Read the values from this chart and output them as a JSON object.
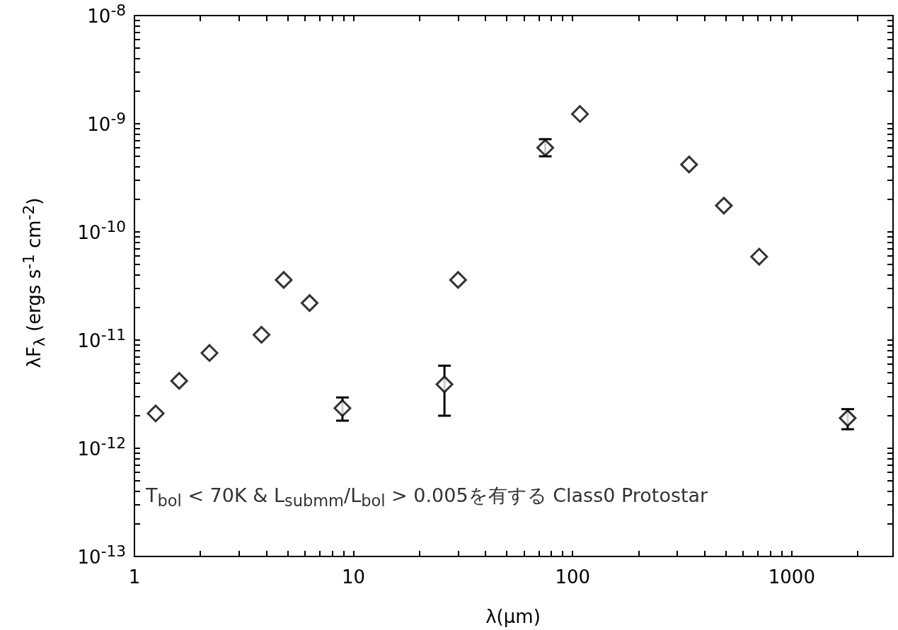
{
  "chart_data": {
    "type": "scatter",
    "xlabel": "λ(μm)",
    "ylabel": "λF$_{λ}$ (ergs s$^{-1}$ cm$^{-2}$)",
    "x": [
      1.25,
      1.6,
      2.2,
      3.8,
      4.8,
      6.3,
      8.9,
      26,
      30,
      75,
      108,
      340,
      490,
      710,
      1800
    ],
    "values": [
      2.1e-12,
      4.2e-12,
      7.6e-12,
      1.12e-11,
      3.6e-11,
      2.2e-11,
      2.35e-12,
      3.9e-12,
      3.6e-11,
      6e-10,
      1.23e-09,
      4.2e-10,
      1.75e-10,
      5.9e-11,
      1.9e-12
    ],
    "errors": [
      null,
      null,
      null,
      null,
      null,
      null,
      [
        1.8e-12,
        2.95e-12
      ],
      [
        2e-12,
        5.8e-12
      ],
      null,
      [
        5e-10,
        7.2e-10
      ],
      null,
      null,
      null,
      null,
      [
        1.5e-12,
        2.3e-12
      ]
    ],
    "color": "#000000",
    "marker": "diamond",
    "log": "xy",
    "grid": false,
    "xlim": [
      1,
      2900
    ],
    "xticks": [
      1,
      {
        "value": 2,
        "label": null
      },
      {
        "value": 3,
        "label": null
      },
      {
        "value": 4,
        "label": null
      },
      {
        "value": 5,
        "label": null
      },
      {
        "value": 6,
        "label": null
      },
      {
        "value": 7,
        "label": null
      },
      {
        "value": 8,
        "label": null
      },
      {
        "value": 9,
        "label": null
      },
      10,
      {
        "value": 20,
        "label": null
      },
      {
        "value": 30,
        "label": null
      },
      {
        "value": 40,
        "label": null
      },
      {
        "value": 50,
        "label": null
      },
      {
        "value": 60,
        "label": null
      },
      {
        "value": 70,
        "label": null
      },
      {
        "value": 80,
        "label": null
      },
      {
        "value": 90,
        "label": null
      },
      100,
      {
        "value": 200,
        "label": null
      },
      {
        "value": 300,
        "label": null
      },
      {
        "value": 400,
        "label": null
      },
      {
        "value": 500,
        "label": null
      },
      {
        "value": 600,
        "label": null
      },
      {
        "value": 700,
        "label": null
      },
      {
        "value": 800,
        "label": null
      },
      {
        "value": 900,
        "label": null
      },
      1000,
      {
        "value": 2000,
        "label": null
      }
    ],
    "ylim": [
      1e-13,
      1e-08
    ],
    "yticks": [
      {
        "value": 1e-13,
        "label": "10$^{-13}$"
      },
      {
        "value": 2e-13,
        "label": null
      },
      {
        "value": 3e-13,
        "label": null
      },
      {
        "value": 4e-13,
        "label": null
      },
      {
        "value": 5e-13,
        "label": null
      },
      {
        "value": 6e-13,
        "label": null
      },
      {
        "value": 7e-13,
        "label": null
      },
      {
        "value": 8e-13,
        "label": null
      },
      {
        "value": 9e-13,
        "label": null
      },
      {
        "value": 1e-12,
        "label": "10$^{-12}$"
      },
      {
        "value": 2e-12,
        "label": null
      },
      {
        "value": 3e-12,
        "label": null
      },
      {
        "value": 4e-12,
        "label": null
      },
      {
        "value": 5e-12,
        "label": null
      },
      {
        "value": 6e-12,
        "label": null
      },
      {
        "value": 7e-12,
        "label": null
      },
      {
        "value": 8e-12,
        "label": null
      },
      {
        "value": 9e-12,
        "label": null
      },
      {
        "value": 1e-11,
        "label": "10$^{-11}$"
      },
      {
        "value": 2e-11,
        "label": null
      },
      {
        "value": 3e-11,
        "label": null
      },
      {
        "value": 4e-11,
        "label": null
      },
      {
        "value": 5e-11,
        "label": null
      },
      {
        "value": 6e-11,
        "label": null
      },
      {
        "value": 7e-11,
        "label": null
      },
      {
        "value": 8e-11,
        "label": null
      },
      {
        "value": 9e-11,
        "label": null
      },
      {
        "value": 1e-10,
        "label": "10$^{-10}$"
      },
      {
        "value": 2e-10,
        "label": null
      },
      {
        "value": 3e-10,
        "label": null
      },
      {
        "value": 4e-10,
        "label": null
      },
      {
        "value": 5e-10,
        "label": null
      },
      {
        "value": 6e-10,
        "label": null
      },
      {
        "value": 7e-10,
        "label": null
      },
      {
        "value": 8e-10,
        "label": null
      },
      {
        "value": 9e-10,
        "label": null
      },
      {
        "value": 1e-09,
        "label": "10$^{-9}$"
      },
      {
        "value": 2e-09,
        "label": null
      },
      {
        "value": 3e-09,
        "label": null
      },
      {
        "value": 4e-09,
        "label": null
      },
      {
        "value": 5e-09,
        "label": null
      },
      {
        "value": 6e-09,
        "label": null
      },
      {
        "value": 7e-09,
        "label": null
      },
      {
        "value": 8e-09,
        "label": null
      },
      {
        "value": 9e-09,
        "label": null
      },
      {
        "value": 1e-08,
        "label": "10$^{-8}$"
      }
    ],
    "annotations": [
      "T$_{bol}$ < 70K & L$_{submm}$/L$_{bol}$ > 0.005を有する Class0 Protostar"
    ]
  }
}
